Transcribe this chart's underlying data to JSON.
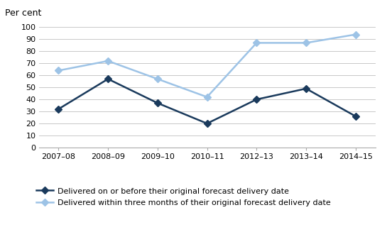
{
  "categories": [
    "2007–08",
    "2008–09",
    "2009–10",
    "2010–11",
    "2012–13",
    "2013–14",
    "2014–15"
  ],
  "series1_label": "Delivered on or before their original forecast delivery date",
  "series1_values": [
    32,
    57,
    37,
    20,
    40,
    49,
    26
  ],
  "series1_color": "#1a3a5c",
  "series2_label": "Delivered within three months of their original forecast delivery date",
  "series2_values": [
    64,
    72,
    57,
    42,
    87,
    87,
    94
  ],
  "series2_color": "#9dc3e6",
  "ylabel": "Per cent",
  "ylim": [
    0,
    100
  ],
  "yticks": [
    0,
    10,
    20,
    30,
    40,
    50,
    60,
    70,
    80,
    90,
    100
  ],
  "grid_color": "#c8c8c8",
  "background_color": "#ffffff",
  "marker": "D",
  "marker_size": 5,
  "linewidth": 1.8,
  "tick_fontsize": 8,
  "ylabel_fontsize": 9,
  "legend_fontsize": 8
}
